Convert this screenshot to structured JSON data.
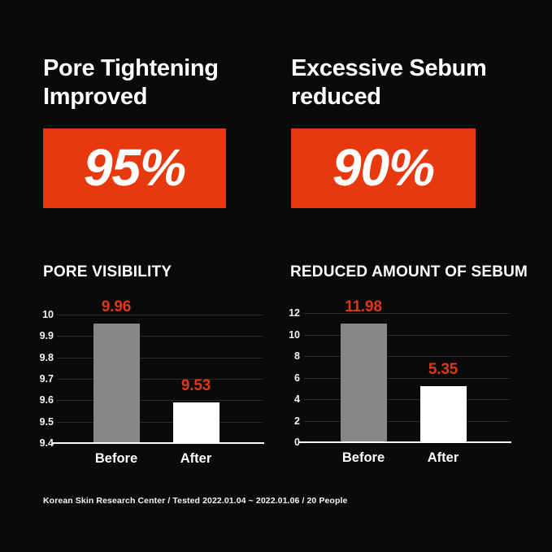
{
  "colors": {
    "background": "#0a0a0a",
    "accent_orange": "#e8380d",
    "value_label_red": "#de3917",
    "bar_gray": "#878787",
    "bar_white": "#ffffff",
    "gridline_gray": "#2d2d2d",
    "text_white": "#ffffff"
  },
  "left_panel": {
    "heading_line1": "Pore Tightening",
    "heading_line2": "Improved",
    "highlight_value": "95%",
    "chart_title": "PORE VISIBILITY"
  },
  "right_panel": {
    "heading_line1": "Excessive Sebum",
    "heading_line2": "reduced",
    "highlight_value": "90%",
    "chart_title": "REDUCED AMOUNT OF SEBUM"
  },
  "footer": {
    "text": "Korean Skin Research Center / Tested 2022.01.04 ~ 2022.01.06 / 20 People"
  },
  "chart_data": [
    {
      "type": "bar",
      "title": "PORE VISIBILITY",
      "categories": [
        "Before",
        "After"
      ],
      "values": [
        9.96,
        9.53
      ],
      "value_labels": [
        "9.96",
        "9.53"
      ],
      "series_colors": [
        "#878787",
        "#ffffff"
      ],
      "value_label_color": "#de3917",
      "ylim": [
        9.4,
        10
      ],
      "ytick_labels": [
        "10",
        "9.9",
        "9.8",
        "9.7",
        "9.6",
        "9.5",
        "9.4"
      ],
      "ytick_values": [
        10,
        9.9,
        9.8,
        9.7,
        9.6,
        9.5,
        9.4
      ],
      "bar_top_rendered": [
        9.96,
        9.59
      ],
      "grid": true,
      "legend": "none",
      "xlabel": "",
      "ylabel": ""
    },
    {
      "type": "bar",
      "title": "REDUCED AMOUNT OF SEBUM",
      "categories": [
        "Before",
        "After"
      ],
      "values": [
        11.98,
        5.35
      ],
      "value_labels": [
        "11.98",
        "5.35"
      ],
      "series_colors": [
        "#878787",
        "#ffffff"
      ],
      "value_label_color": "#de3917",
      "ylim": [
        0,
        12
      ],
      "ytick_labels": [
        "12",
        "10",
        "8",
        "6",
        "4",
        "2",
        "0"
      ],
      "ytick_values": [
        12,
        10,
        8,
        6,
        4,
        2,
        0
      ],
      "bar_top_rendered": [
        11.0,
        5.2
      ],
      "grid": true,
      "legend": "none",
      "xlabel": "",
      "ylabel": ""
    }
  ]
}
